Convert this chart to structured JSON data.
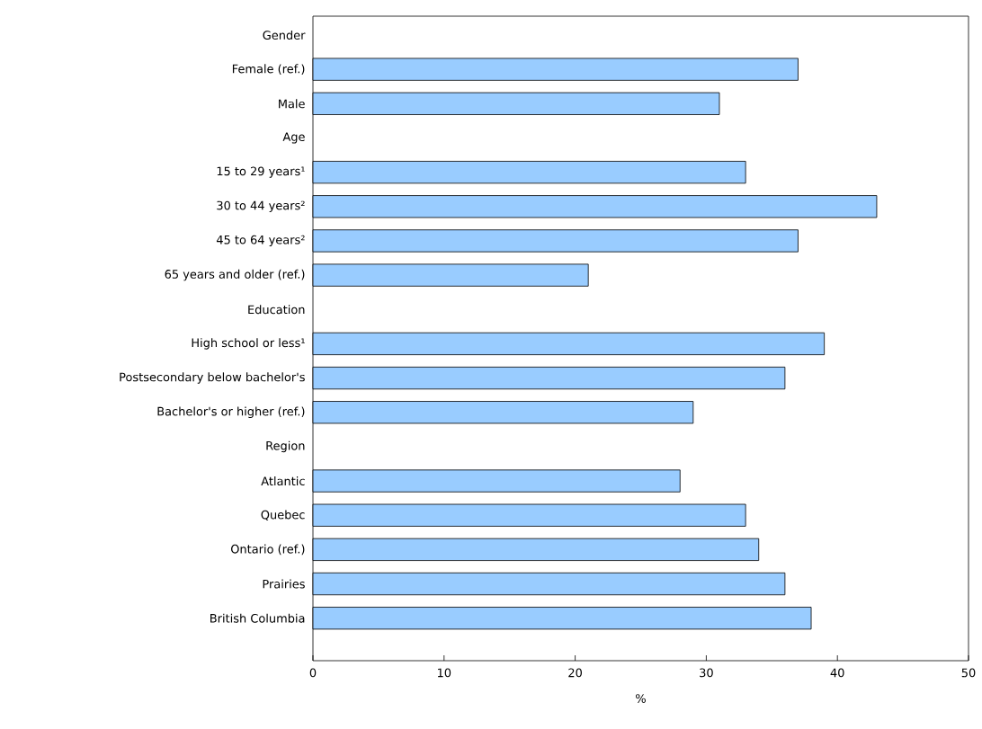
{
  "chart_data": {
    "type": "bar",
    "orientation": "horizontal",
    "xlabel": "%",
    "categories": [
      "Gender",
      "Female (ref.)",
      "Male",
      "Age",
      "15 to 29 years¹",
      "30 to 44 years²",
      "45 to 64 years²",
      "65 years and older (ref.)",
      "Education",
      "High school or less¹",
      "Postsecondary below bachelor's",
      "Bachelor's or higher (ref.)",
      "Region",
      "Atlantic",
      "Quebec",
      "Ontario (ref.)",
      "Prairies",
      "British Columbia"
    ],
    "values": [
      null,
      37,
      31,
      null,
      33,
      43,
      37,
      21,
      null,
      39,
      36,
      29,
      null,
      28,
      33,
      34,
      36,
      38
    ],
    "color": "#99ccff",
    "xlim": [
      0,
      50
    ],
    "xticks": [
      0,
      10,
      20,
      30,
      40,
      50
    ]
  }
}
